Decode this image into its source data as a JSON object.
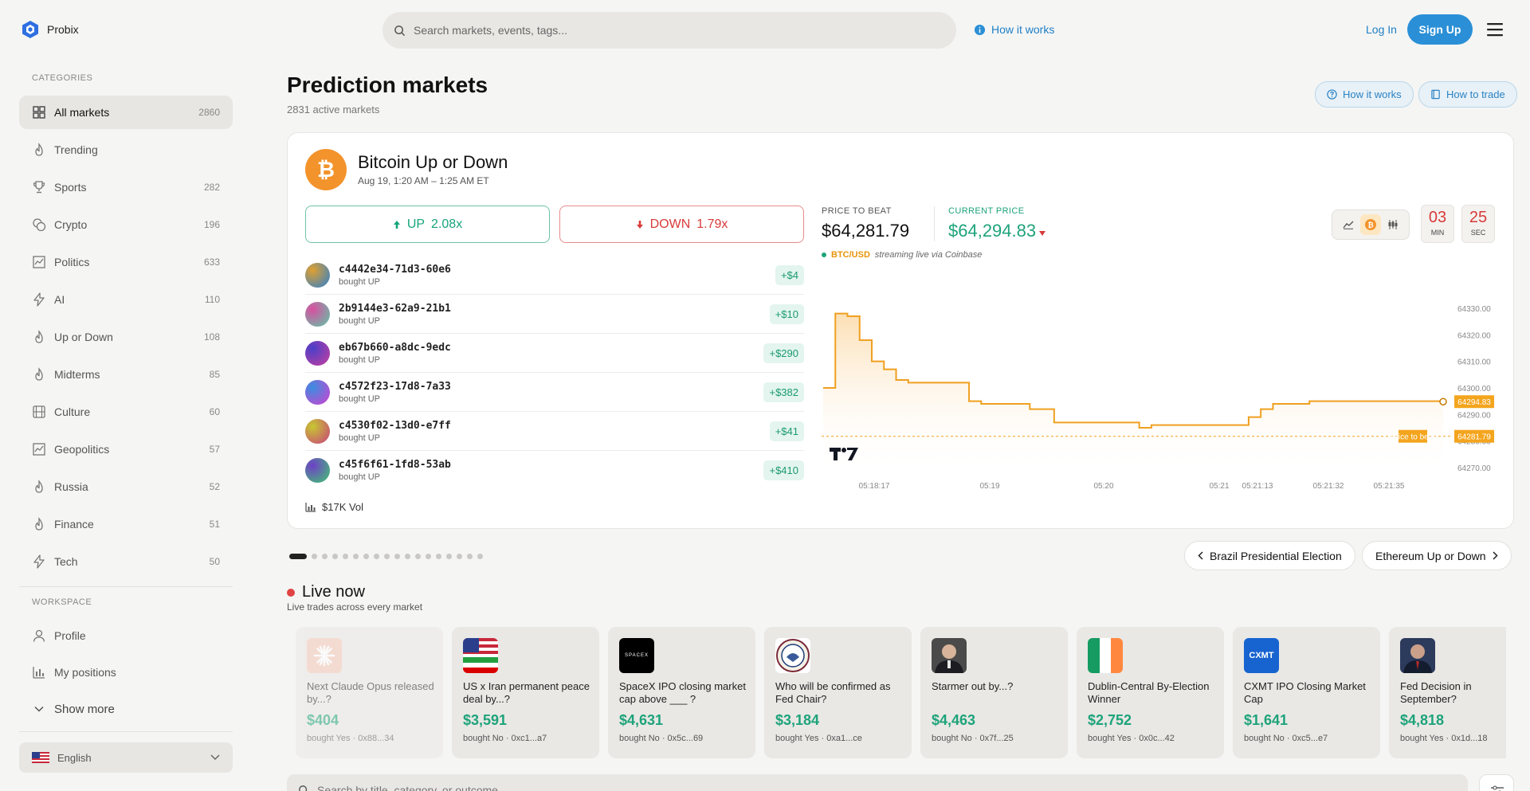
{
  "brand": {
    "name": "Probix"
  },
  "search": {
    "placeholder": "Search markets, events, tags..."
  },
  "header": {
    "how_it_works": "How it works",
    "login": "Log In",
    "signup": "Sign Up"
  },
  "sidebar": {
    "categories_label": "CATEGORIES",
    "categories": [
      {
        "label": "All markets",
        "count": "2860",
        "icon": "grid-icon"
      },
      {
        "label": "Trending",
        "count": "",
        "icon": "flame-icon"
      },
      {
        "label": "Sports",
        "count": "282",
        "icon": "trophy-icon"
      },
      {
        "label": "Crypto",
        "count": "196",
        "icon": "coins-icon"
      },
      {
        "label": "Politics",
        "count": "633",
        "icon": "chart-box-icon"
      },
      {
        "label": "AI",
        "count": "110",
        "icon": "bolt-icon"
      },
      {
        "label": "Up or Down",
        "count": "108",
        "icon": "flame-icon"
      },
      {
        "label": "Midterms",
        "count": "85",
        "icon": "flame-icon"
      },
      {
        "label": "Culture",
        "count": "60",
        "icon": "film-icon"
      },
      {
        "label": "Geopolitics",
        "count": "57",
        "icon": "chart-box-icon"
      },
      {
        "label": "Russia",
        "count": "52",
        "icon": "flame-icon"
      },
      {
        "label": "Finance",
        "count": "51",
        "icon": "flame-icon"
      },
      {
        "label": "Tech",
        "count": "50",
        "icon": "bolt-icon"
      }
    ],
    "workspace_label": "WORKSPACE",
    "workspace": [
      {
        "label": "Profile",
        "icon": "user-icon"
      },
      {
        "label": "My positions",
        "icon": "bar-chart-icon"
      },
      {
        "label": "Show more",
        "icon": "chevron-down-icon"
      }
    ],
    "language": "English"
  },
  "main": {
    "title": "Prediction markets",
    "subtitle": "2831 active markets",
    "how_it_works": "How it works",
    "how_to_trade": "How to trade"
  },
  "featured": {
    "title": "Bitcoin Up or Down",
    "date": "Aug 19, 1:20 AM – 1:25 AM ET",
    "up_label": "UP",
    "up_mult": "2.08x",
    "down_label": "DOWN",
    "down_mult": "1.79x",
    "trades": [
      {
        "addr": "c4442e34-71d3-60e6",
        "action": "bought UP",
        "amount": "+$4",
        "c1": "#e0a030",
        "c2": "#2a7fd0"
      },
      {
        "addr": "2b9144e3-62a9-21b1",
        "action": "bought UP",
        "amount": "+$10",
        "c1": "#d94fa0",
        "c2": "#5cc9a8"
      },
      {
        "addr": "eb67b660-a8dc-9edc",
        "action": "bought UP",
        "amount": "+$290",
        "c1": "#4a3fc8",
        "c2": "#c93f9f"
      },
      {
        "addr": "c4572f23-17d8-7a33",
        "action": "bought UP",
        "amount": "+$382",
        "c1": "#3a8ee0",
        "c2": "#d43fd0"
      },
      {
        "addr": "c4530f02-13d0-e7ff",
        "action": "bought UP",
        "amount": "+$41",
        "c1": "#c7c830",
        "c2": "#c83f7f"
      },
      {
        "addr": "c45f6f61-1fd8-53ab",
        "action": "bought UP",
        "amount": "+$410",
        "c1": "#6f3fc8",
        "c2": "#3fc86f"
      }
    ],
    "volume": "$17K Vol",
    "price_to_beat_label": "PRICE TO BEAT",
    "price_to_beat": "$64,281.79",
    "current_price_label": "CURRENT PRICE",
    "current_price": "$64,294.83",
    "feed_pair": "BTC/USD",
    "feed_source": "streaming live via Coinbase",
    "timer_min": "03",
    "timer_min_label": "MIN",
    "timer_sec": "25",
    "timer_sec_label": "SEC"
  },
  "chart_data": {
    "type": "line",
    "title": "",
    "xlabel": "",
    "ylabel": "",
    "ylim": [
      64270,
      64330
    ],
    "yticks": [
      "64330.00",
      "64320.00",
      "64310.00",
      "64300.00",
      "64290.00",
      "64280.00",
      "64270.00"
    ],
    "xticks": [
      "05:18:17",
      "05:19",
      "05:20",
      "05:21",
      "05:21:13",
      "05:21:32",
      "05:21:35"
    ],
    "series": [
      {
        "values": [
          64300,
          64328,
          64327,
          64318,
          64310,
          64307,
          64303,
          64302,
          64302,
          64302,
          64302,
          64302,
          64295,
          64294,
          64294,
          64294,
          64294,
          64292,
          64292,
          64287,
          64287,
          64287,
          64287,
          64287,
          64287,
          64287,
          64285,
          64286,
          64286,
          64286,
          64286,
          64286,
          64286,
          64286,
          64286,
          64289,
          64292,
          64294,
          64294,
          64294,
          64295,
          64295,
          64295,
          64295,
          64295,
          64295,
          64295,
          64295,
          64295,
          64295,
          64295,
          64294.83
        ]
      }
    ],
    "price_to_beat": 64281.79,
    "current_value_label": "64294.83",
    "price_to_beat_label": "Price to beat",
    "price_to_beat_value_label": "64281.79",
    "line_color": "#f0a020"
  },
  "carousel": {
    "prev_label": "Brazil Presidential Election",
    "next_label": "Ethereum Up or Down"
  },
  "live": {
    "title": "Live now",
    "subtitle": "Live trades across every market",
    "cards": [
      {
        "question": "Next Claude Opus released by...?",
        "price": "$404",
        "meta": "bought Yes · 0x88...34",
        "thumb": "claude"
      },
      {
        "question": "US x Iran permanent peace deal by...?",
        "price": "$3,591",
        "meta": "bought No · 0xc1...a7",
        "thumb": "flags"
      },
      {
        "question": "SpaceX IPO closing market cap above ___ ?",
        "price": "$4,631",
        "meta": "bought No · 0x5c...69",
        "thumb": "spacex"
      },
      {
        "question": "Who will be confirmed as Fed Chair?",
        "price": "$3,184",
        "meta": "bought Yes · 0xa1...ce",
        "thumb": "seal"
      },
      {
        "question": "Starmer out by...?",
        "price": "$4,463",
        "meta": "bought No · 0x7f...25",
        "thumb": "person"
      },
      {
        "question": "Dublin-Central By-Election Winner",
        "price": "$2,752",
        "meta": "bought Yes · 0x0c...42",
        "thumb": "ireland"
      },
      {
        "question": "CXMT IPO Closing Market Cap",
        "price": "$1,641",
        "meta": "bought No · 0xc5...e7",
        "thumb": "cxmt"
      },
      {
        "question": "Fed Decision in September?",
        "price": "$4,818",
        "meta": "bought Yes · 0x1d...18",
        "thumb": "person2"
      }
    ],
    "spacex_logo": "SPACEX",
    "cxmt_logo": "CXMT"
  },
  "bottom_search": {
    "placeholder": "Search by title, category, or outcome..."
  }
}
